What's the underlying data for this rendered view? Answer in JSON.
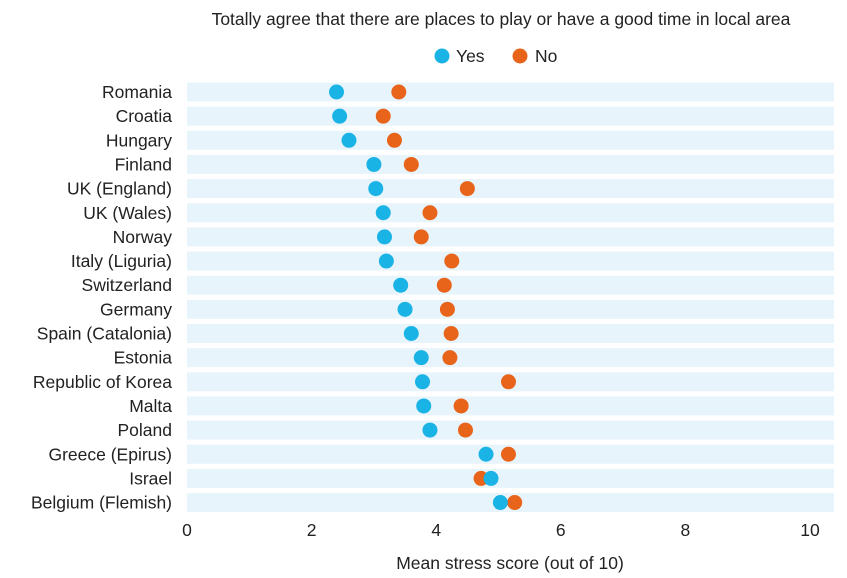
{
  "colors": {
    "yes": "#1AB3E6",
    "no": "#E8641B",
    "band": "#E8F4FB",
    "text": "#222222"
  },
  "chart_data": {
    "type": "scatter",
    "title": "Totally agree that there are places to play or have a good time in local area",
    "xlabel": "Mean stress score (out of 10)",
    "xlim": [
      0,
      10
    ],
    "xticks": [
      0,
      2,
      4,
      6,
      8,
      10
    ],
    "legend_position": "top",
    "grid": false,
    "categories": [
      "Romania",
      "Croatia",
      "Hungary",
      "Finland",
      "UK (England)",
      "UK (Wales)",
      "Norway",
      "Italy (Liguria)",
      "Switzerland",
      "Germany",
      "Spain (Catalonia)",
      "Estonia",
      "Republic of Korea",
      "Malta",
      "Poland",
      "Greece (Epirus)",
      "Israel",
      "Belgium (Flemish)"
    ],
    "series": [
      {
        "name": "Yes",
        "color": "#1AB3E6",
        "values": [
          2.4,
          2.45,
          2.6,
          3.0,
          3.03,
          3.15,
          3.17,
          3.2,
          3.43,
          3.5,
          3.6,
          3.76,
          3.78,
          3.8,
          3.9,
          4.8,
          4.88,
          5.03
        ]
      },
      {
        "name": "No",
        "color": "#E8641B",
        "values": [
          3.4,
          3.15,
          3.33,
          3.6,
          4.5,
          3.9,
          3.76,
          4.25,
          4.13,
          4.18,
          4.24,
          4.22,
          5.16,
          4.4,
          4.47,
          5.16,
          4.72,
          5.26
        ]
      }
    ]
  }
}
